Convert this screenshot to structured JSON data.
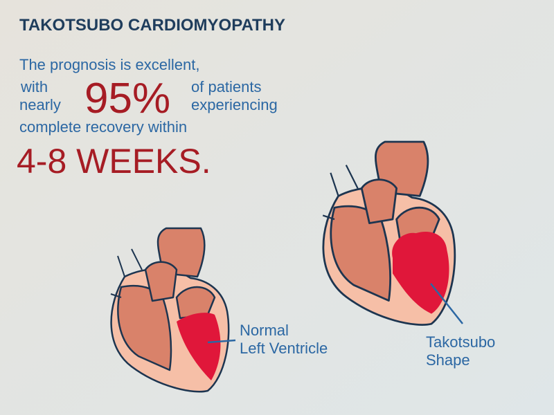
{
  "header": {
    "title": "TAKOTSUBO CARDIOMYOPATHY"
  },
  "statement": {
    "line1": "The prognosis is excellent,",
    "with": "with",
    "nearly": "nearly",
    "percent": "95%",
    "of_patients": "of patients",
    "experiencing": "experiencing",
    "line3": "complete recovery within",
    "duration": "4-8 WEEKS."
  },
  "labels": [
    {
      "lines": [
        "Normal",
        "Left Ventricle"
      ]
    },
    {
      "lines": [
        "Takotsubo",
        "Shape"
      ]
    }
  ]
}
